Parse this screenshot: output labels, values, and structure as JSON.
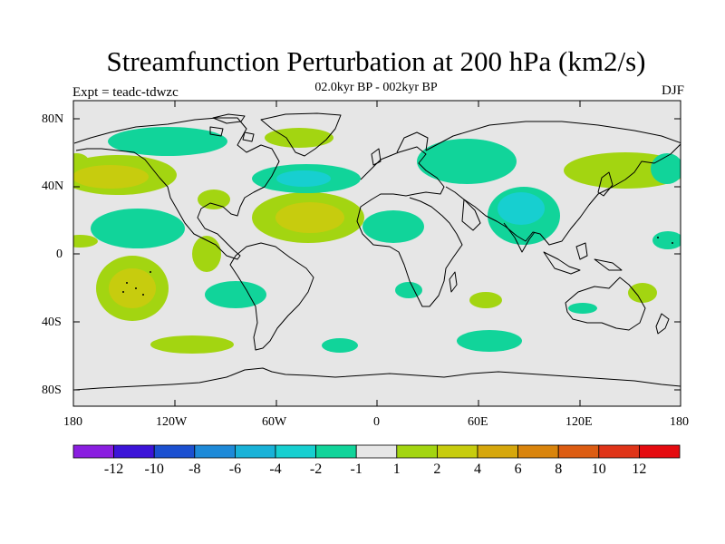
{
  "title": "Streamfunction Perturbation at 200 hPa (km2/s)",
  "subtitle": "02.0kyr BP - 002kyr BP",
  "experiment": "Expt = teadc-tdwzc",
  "season": "DJF",
  "y_axis_labels": [
    "80N",
    "40N",
    "0",
    "40S",
    "80S"
  ],
  "x_axis_labels": [
    "180",
    "120W",
    "60W",
    "0",
    "60E",
    "120E",
    "180"
  ],
  "colorbar": {
    "labels": [
      "-12",
      "-10",
      "-8",
      "-6",
      "-4",
      "-2",
      "-1",
      "1",
      "2",
      "4",
      "6",
      "8",
      "10",
      "12"
    ],
    "colors": [
      "#8a1ee0",
      "#3c14d8",
      "#1c50d0",
      "#1e8ad8",
      "#19b2d8",
      "#17cfd0",
      "#11d49a",
      "#e6e6e6",
      "#a3d511",
      "#c7cc0e",
      "#d6a70c",
      "#d9840c",
      "#dc5c12",
      "#df3418",
      "#e50b10"
    ]
  },
  "map_bg": "#e6e6e6"
}
